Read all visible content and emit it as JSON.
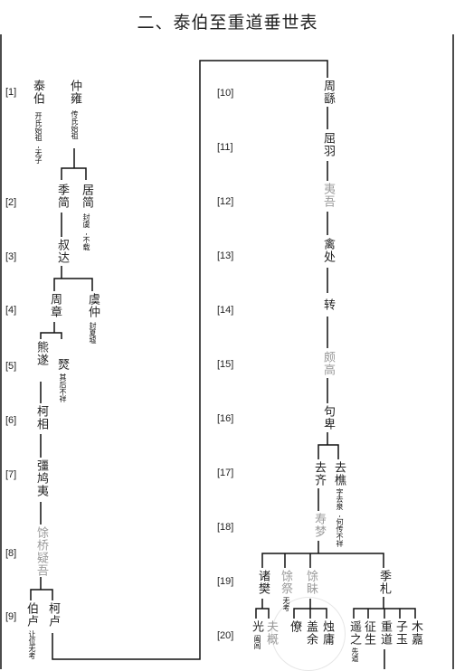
{
  "title": "二、泰伯至重道垂世表",
  "generations": [
    "[1]",
    "[2]",
    "[3]",
    "[4]",
    "[5]",
    "[6]",
    "[7]",
    "[8]",
    "[9]",
    "[20]",
    "[10]",
    "[11]",
    "[12]",
    "[13]",
    "[14]",
    "[15]",
    "[16]",
    "[17]",
    "[18]",
    "[19]"
  ],
  "people": {
    "taibo": "泰伯",
    "taibo_note": "开氏始祖,无子",
    "zhongyong": "仲雍",
    "zhongyong_note": "传氏始祖",
    "jijian": "季简",
    "juyun": "居简",
    "juyun_note": "封虞,不载",
    "shuda": "叔达",
    "zhouzhang": "周章",
    "yuzhong": "虞仲",
    "yuzhong_note": "封夏墟",
    "xiongsui": "熊遂",
    "kuan": "燹",
    "kuan_note": "其后不祥",
    "kexiang": "柯相",
    "qiangjiuyi": "彊鸠夷",
    "yuqiaoyiwu": "馀桥疑吾",
    "bolu": "伯卢",
    "bolu_note": "让位无考",
    "kelu": "柯卢",
    "zhouyao": "周繇",
    "quyu": "屈羽",
    "yiwu": "夷吾",
    "qinchu": "禽处",
    "zhuan": "转",
    "pogao": "颇高",
    "goubei": "句卑",
    "quqi": "去齐",
    "qujiao": "去樵",
    "qujiao_note": "字去泉,何传不祥",
    "shoumeng": "寿梦",
    "zhufan": "诸樊",
    "yuji": "馀祭",
    "yuji_note": "无考",
    "yumei": "馀眛",
    "jizha": "季札",
    "guang": "光",
    "guang_note": "阖闾",
    "fugai": "夫概",
    "liao": "僚",
    "gaiyu": "盖余",
    "zhuyong": "烛庸",
    "zhengzhi": "遥之",
    "zhengzhi_note": "先道",
    "zhengsheng": "征生",
    "zhongdao": "重道",
    "ziyu": "子玉",
    "mujia": "木嘉"
  }
}
